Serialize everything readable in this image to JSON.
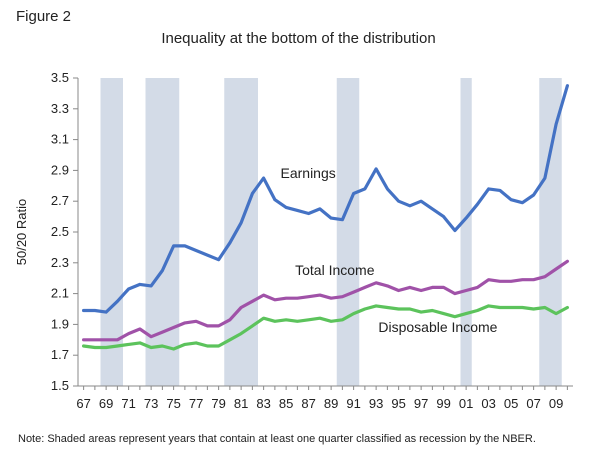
{
  "figure_label": "Figure 2",
  "chart_data": {
    "type": "line",
    "title": "Inequality at the bottom of the distribution",
    "xlabel": "",
    "ylabel": "50/20 Ratio",
    "ylim": [
      1.5,
      3.5
    ],
    "yticks": [
      1.5,
      1.7,
      1.9,
      2.1,
      2.3,
      2.5,
      2.7,
      2.9,
      3.1,
      3.3,
      3.5
    ],
    "x": [
      1967,
      1968,
      1969,
      1970,
      1971,
      1972,
      1973,
      1974,
      1975,
      1976,
      1977,
      1978,
      1979,
      1980,
      1981,
      1982,
      1983,
      1984,
      1985,
      1986,
      1987,
      1988,
      1989,
      1990,
      1991,
      1992,
      1993,
      1994,
      1995,
      1996,
      1997,
      1998,
      1999,
      2000,
      2001,
      2002,
      2003,
      2004,
      2005,
      2006,
      2007,
      2008,
      2009,
      2010
    ],
    "xticks": [
      "67",
      "69",
      "71",
      "73",
      "75",
      "77",
      "79",
      "81",
      "83",
      "85",
      "87",
      "89",
      "91",
      "93",
      "95",
      "97",
      "99",
      "01",
      "03",
      "05",
      "07",
      "09"
    ],
    "xtick_years": [
      1967,
      1969,
      1971,
      1973,
      1975,
      1977,
      1979,
      1981,
      1983,
      1985,
      1987,
      1989,
      1991,
      1993,
      1995,
      1997,
      1999,
      2001,
      2003,
      2005,
      2007,
      2009
    ],
    "recessions": [
      [
        1969,
        1970
      ],
      [
        1973,
        1975
      ],
      [
        1980,
        1982
      ],
      [
        1990,
        1991
      ],
      [
        2001,
        2001
      ],
      [
        2008,
        2009
      ]
    ],
    "series": [
      {
        "name": "Earnings",
        "color": "#4472c4",
        "values": [
          1.99,
          1.99,
          1.98,
          2.05,
          2.13,
          2.16,
          2.15,
          2.25,
          2.41,
          2.41,
          2.38,
          2.35,
          2.32,
          2.43,
          2.56,
          2.75,
          2.85,
          2.71,
          2.66,
          2.64,
          2.62,
          2.65,
          2.59,
          2.58,
          2.75,
          2.78,
          2.91,
          2.78,
          2.7,
          2.67,
          2.7,
          2.65,
          2.6,
          2.51,
          2.59,
          2.68,
          2.78,
          2.77,
          2.71,
          2.69,
          2.74,
          2.85,
          3.2,
          3.45
        ]
      },
      {
        "name": "Total Income",
        "color": "#a052a8",
        "values": [
          1.8,
          1.8,
          1.8,
          1.8,
          1.84,
          1.87,
          1.82,
          1.85,
          1.88,
          1.91,
          1.92,
          1.89,
          1.89,
          1.93,
          2.01,
          2.05,
          2.09,
          2.06,
          2.07,
          2.07,
          2.08,
          2.09,
          2.07,
          2.08,
          2.11,
          2.14,
          2.17,
          2.15,
          2.12,
          2.14,
          2.12,
          2.14,
          2.14,
          2.1,
          2.12,
          2.14,
          2.19,
          2.18,
          2.18,
          2.19,
          2.19,
          2.21,
          2.26,
          2.31
        ]
      },
      {
        "name": "Disposable Income",
        "color": "#5cc35c",
        "values": [
          1.76,
          1.75,
          1.75,
          1.76,
          1.77,
          1.78,
          1.75,
          1.76,
          1.74,
          1.77,
          1.78,
          1.76,
          1.76,
          1.8,
          1.84,
          1.89,
          1.94,
          1.92,
          1.93,
          1.92,
          1.93,
          1.94,
          1.92,
          1.93,
          1.97,
          2.0,
          2.02,
          2.01,
          2.0,
          2.0,
          1.98,
          1.99,
          1.97,
          1.95,
          1.97,
          1.99,
          2.02,
          2.01,
          2.01,
          2.01,
          2.0,
          2.01,
          1.97,
          2.01
        ]
      }
    ]
  },
  "note": "Note: Shaded areas represent years that contain at least one quarter classified as recession by the NBER."
}
